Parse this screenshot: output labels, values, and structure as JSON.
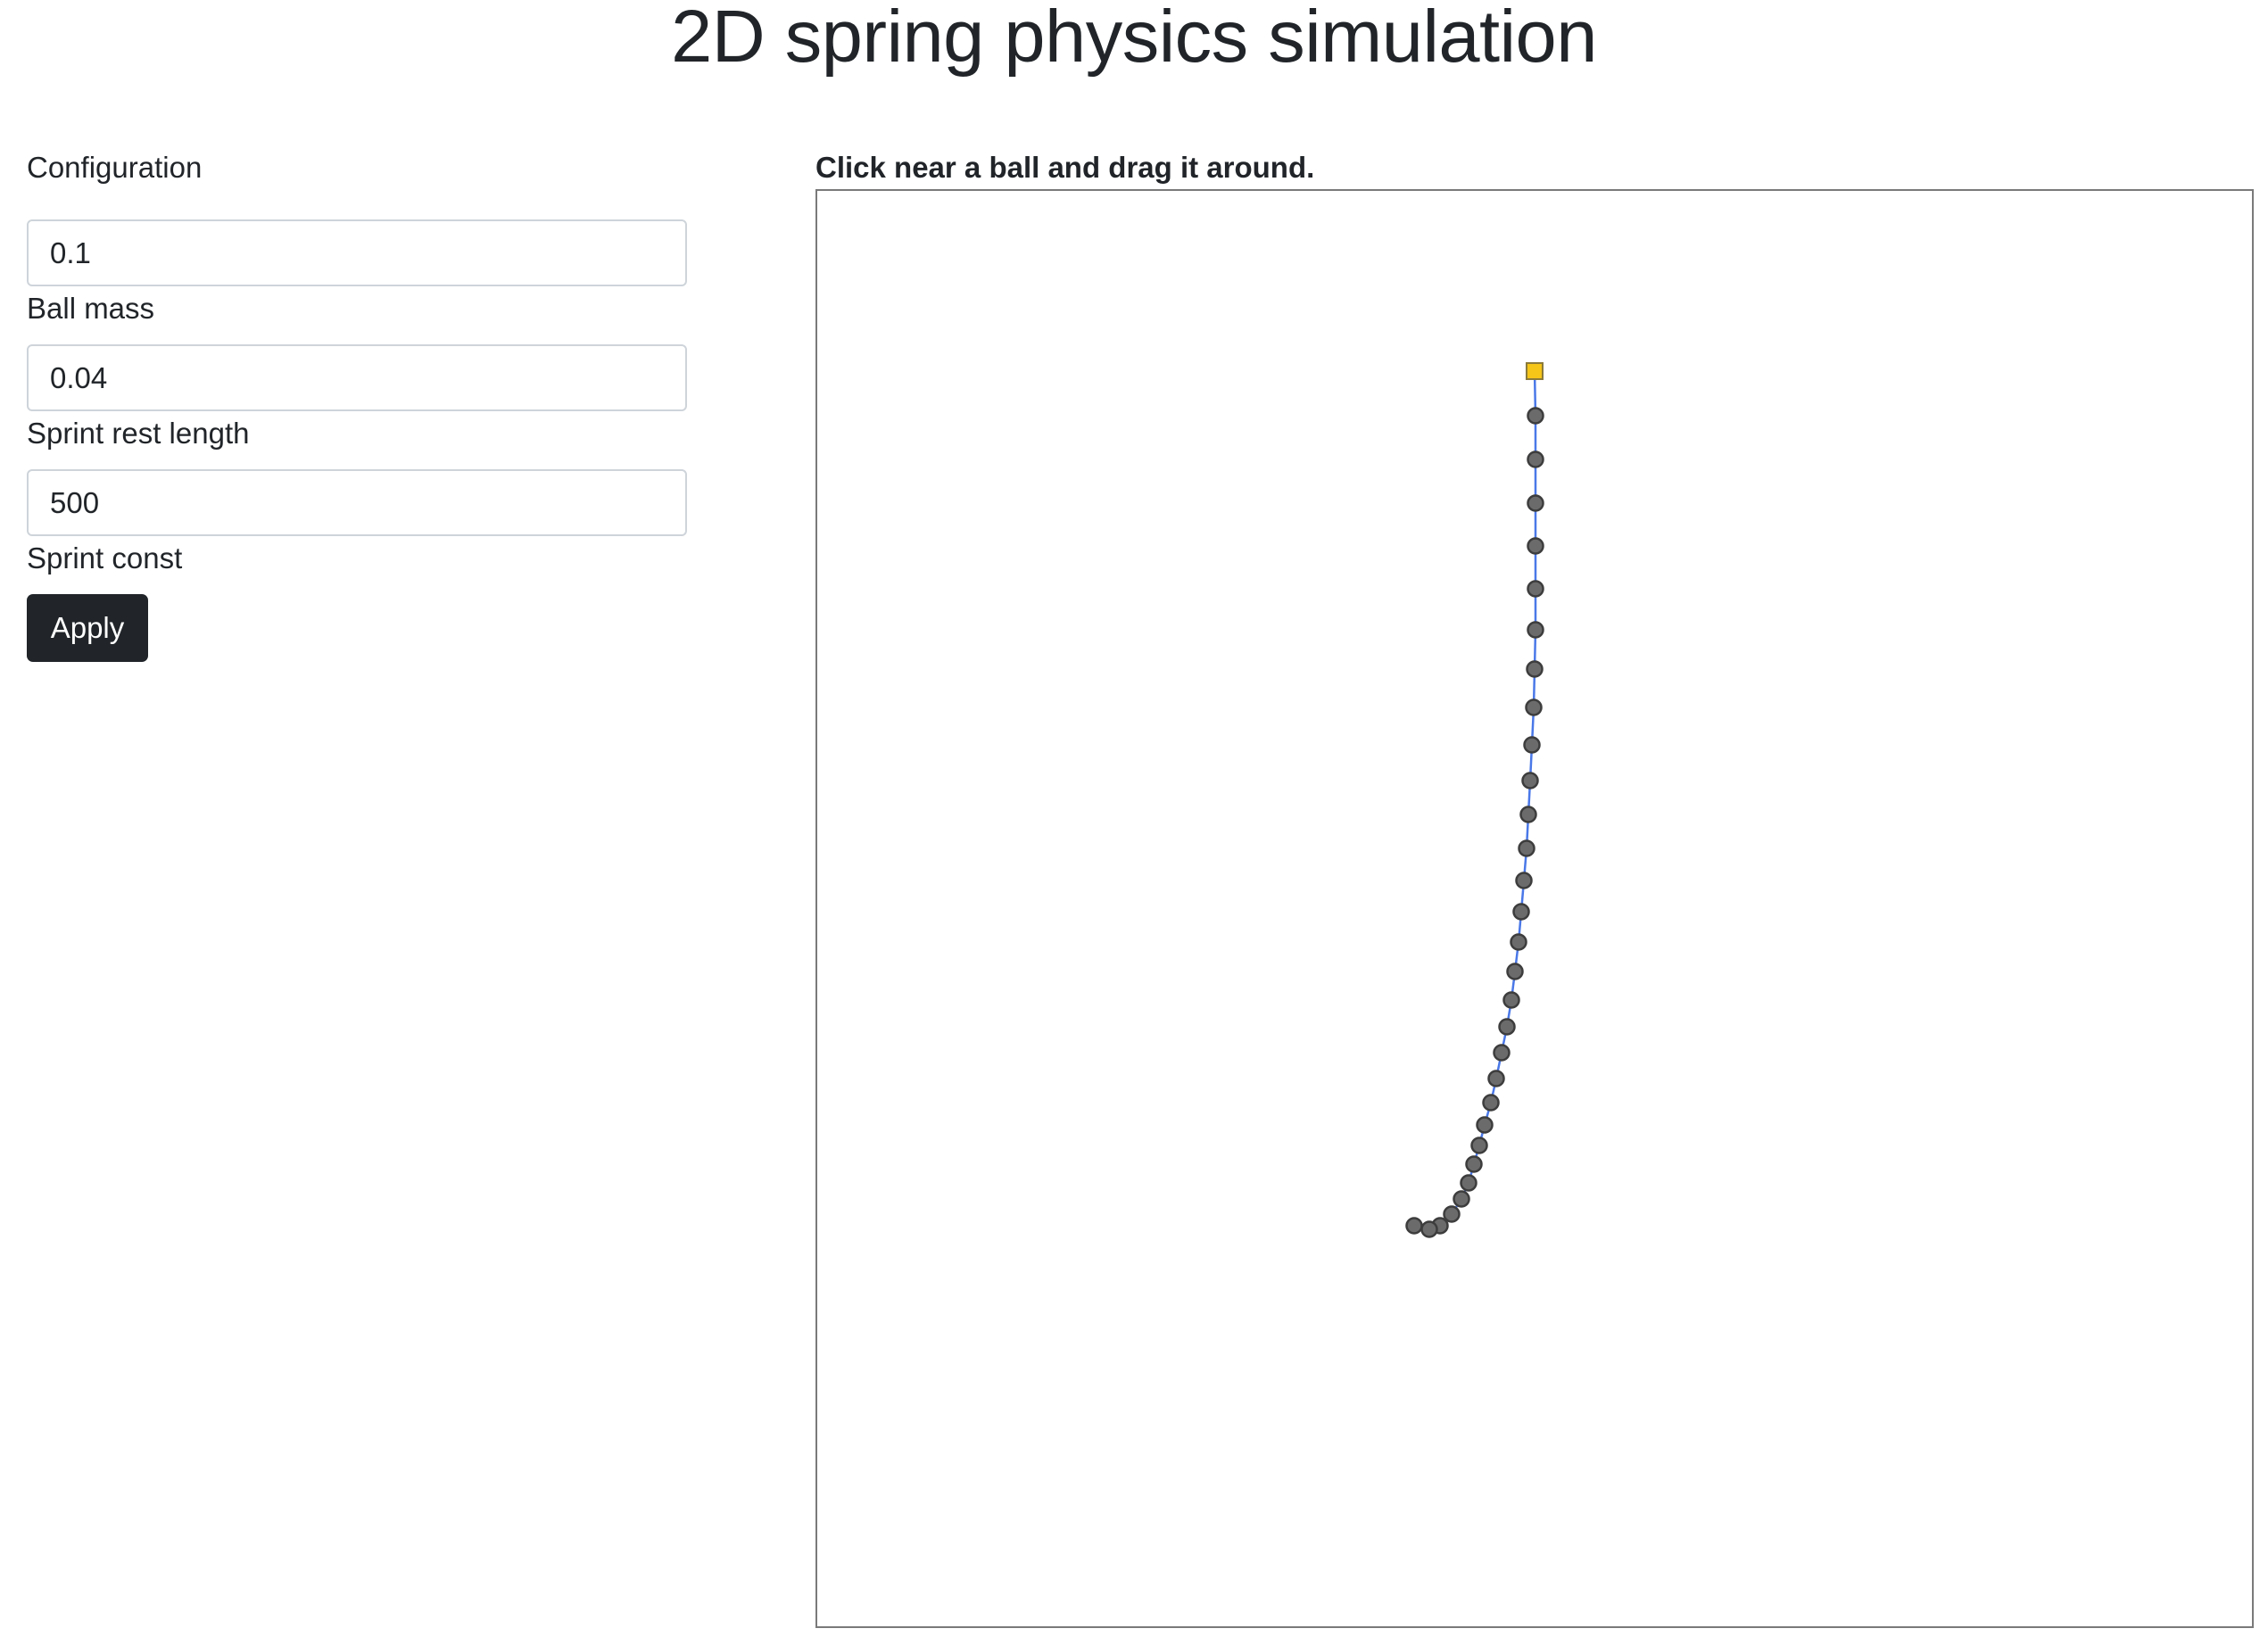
{
  "page": {
    "title": "2D spring physics simulation"
  },
  "config": {
    "heading": "Configuration",
    "fields": [
      {
        "value": "0.1",
        "label": "Ball mass"
      },
      {
        "value": "0.04",
        "label": "Sprint rest length"
      },
      {
        "value": "500",
        "label": "Sprint const"
      }
    ],
    "apply_label": "Apply"
  },
  "simulation": {
    "instruction": "Click near a ball and drag it around.",
    "colors": {
      "anchor_fill": "#f5c518",
      "anchor_stroke": "#8a7a3a",
      "ball_fill": "#6b6b6b",
      "ball_stroke": "#3d3d3d",
      "spring_color": "#4a78e8",
      "border": "#7a7a7a"
    },
    "ball_count": 30
  }
}
